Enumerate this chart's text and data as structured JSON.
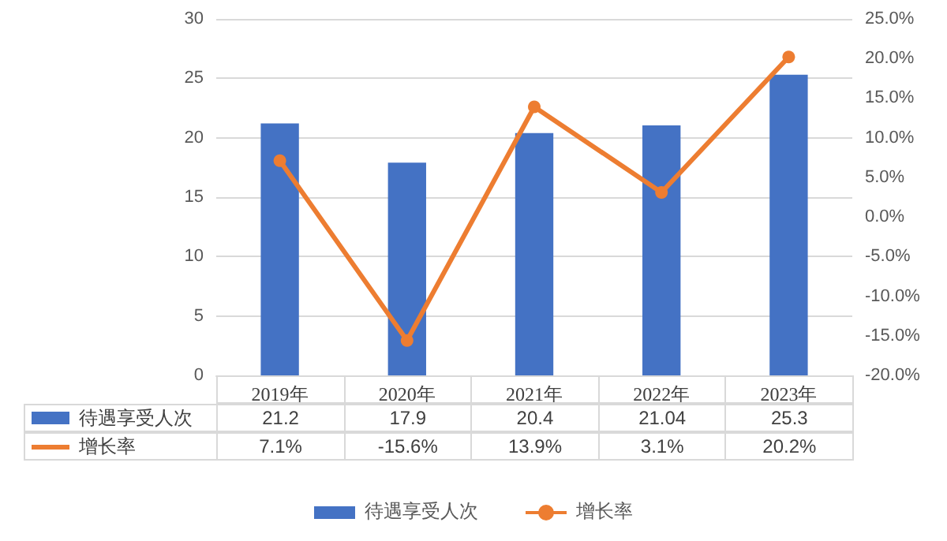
{
  "chart_data": {
    "type": "bar",
    "categories": [
      "2019年",
      "2020年",
      "2021年",
      "2022年",
      "2023年"
    ],
    "series": [
      {
        "name": "待遇享受人次",
        "color": "#4472c4",
        "values": [
          21.2,
          17.9,
          20.4,
          21.04,
          25.3
        ],
        "value_labels": [
          "21.2",
          "17.9",
          "20.4",
          "21.04",
          "25.3"
        ]
      },
      {
        "name": "增长率",
        "type": "line",
        "axis": "y2",
        "color": "#ed7d31",
        "marker": "circle",
        "values": [
          7.1,
          -15.6,
          13.9,
          3.1,
          20.2
        ],
        "value_labels": [
          "7.1%",
          "-15.6%",
          "13.9%",
          "3.1%",
          "20.2%"
        ]
      }
    ],
    "ylim": [
      0,
      30
    ],
    "yticks": [
      0,
      5,
      10,
      15,
      20,
      25,
      30
    ],
    "y2lim": [
      -20,
      25
    ],
    "y2ticks": [
      {
        "value": -20,
        "label": "-20.0%"
      },
      {
        "value": -15,
        "label": "-15.0%"
      },
      {
        "value": -10,
        "label": "-10.0%"
      },
      {
        "value": -5,
        "label": "-5.0%"
      },
      {
        "value": 0,
        "label": "0.0%"
      },
      {
        "value": 5,
        "label": "5.0%"
      },
      {
        "value": 10,
        "label": "10.0%"
      },
      {
        "value": 15,
        "label": "15.0%"
      },
      {
        "value": 20,
        "label": "20.0%"
      },
      {
        "value": 25,
        "label": "25.0%"
      }
    ],
    "grid": "y",
    "legend": "bottom"
  }
}
